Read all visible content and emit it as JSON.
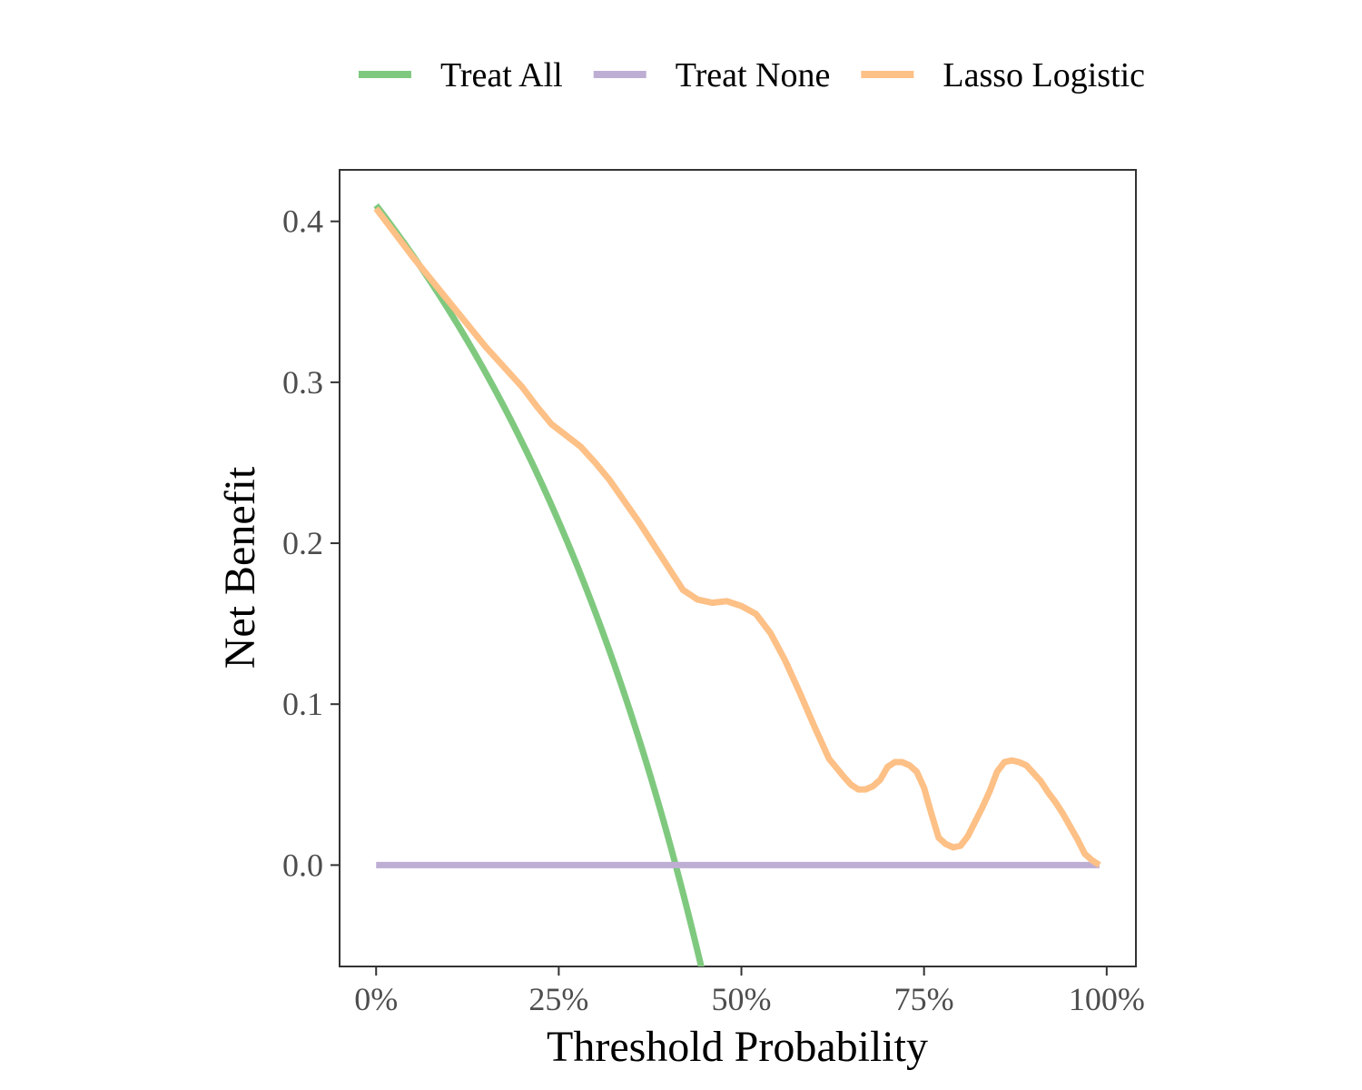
{
  "chart_data": {
    "type": "line",
    "title": "",
    "xlabel": "Threshold Probability",
    "ylabel": "Net Benefit",
    "xlim": [
      -0.05,
      1.04
    ],
    "ylim": [
      -0.063,
      0.432
    ],
    "x_ticks": [
      0,
      0.25,
      0.5,
      0.75,
      1.0
    ],
    "x_tick_labels": [
      "0%",
      "25%",
      "50%",
      "75%",
      "100%"
    ],
    "y_ticks": [
      0.0,
      0.1,
      0.2,
      0.3,
      0.4
    ],
    "y_tick_labels": [
      "0.0",
      "0.1",
      "0.2",
      "0.3",
      "0.4"
    ],
    "grid": false,
    "legend_position": "top",
    "series": [
      {
        "name": "Treat All",
        "color": "#7fc97f",
        "prevalence": 0.41,
        "formula": "prevalence - (1 - prevalence) * pt / (1 - pt)",
        "x_range": [
          0,
          0.45
        ]
      },
      {
        "name": "Treat None",
        "color": "#beaed4",
        "x": [
          0,
          0.99
        ],
        "y": [
          0,
          0
        ]
      },
      {
        "name": "Lasso Logistic",
        "color": "#fdc086",
        "x": [
          0,
          0.05,
          0.1,
          0.15,
          0.2,
          0.22,
          0.24,
          0.26,
          0.28,
          0.3,
          0.32,
          0.34,
          0.36,
          0.38,
          0.4,
          0.42,
          0.44,
          0.46,
          0.48,
          0.5,
          0.52,
          0.54,
          0.56,
          0.58,
          0.6,
          0.62,
          0.64,
          0.65,
          0.66,
          0.67,
          0.68,
          0.69,
          0.7,
          0.71,
          0.72,
          0.73,
          0.74,
          0.75,
          0.76,
          0.77,
          0.78,
          0.79,
          0.8,
          0.81,
          0.82,
          0.83,
          0.84,
          0.85,
          0.86,
          0.87,
          0.88,
          0.89,
          0.9,
          0.91,
          0.92,
          0.93,
          0.94,
          0.95,
          0.96,
          0.97,
          0.98,
          0.99
        ],
        "y": [
          0.408,
          0.378,
          0.35,
          0.322,
          0.297,
          0.285,
          0.274,
          0.267,
          0.26,
          0.25,
          0.239,
          0.226,
          0.213,
          0.199,
          0.185,
          0.171,
          0.165,
          0.163,
          0.164,
          0.161,
          0.156,
          0.144,
          0.127,
          0.107,
          0.086,
          0.066,
          0.055,
          0.05,
          0.047,
          0.047,
          0.049,
          0.053,
          0.061,
          0.064,
          0.064,
          0.062,
          0.058,
          0.048,
          0.032,
          0.017,
          0.013,
          0.011,
          0.012,
          0.018,
          0.027,
          0.036,
          0.046,
          0.058,
          0.064,
          0.065,
          0.064,
          0.062,
          0.057,
          0.052,
          0.045,
          0.039,
          0.032,
          0.024,
          0.016,
          0.007,
          0.003,
          0.0
        ]
      }
    ]
  }
}
